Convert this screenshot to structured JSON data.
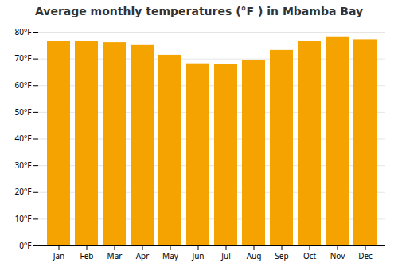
{
  "chart_data": {
    "type": "bar",
    "title": "Average monthly temperatures (°F ) in Mbamba Bay",
    "categories": [
      "Jan",
      "Feb",
      "Mar",
      "Apr",
      "May",
      "Jun",
      "Jul",
      "Aug",
      "Sep",
      "Oct",
      "Nov",
      "Dec"
    ],
    "values": [
      76.5,
      76.5,
      76.1,
      75.0,
      71.4,
      68.2,
      67.8,
      69.3,
      73.2,
      76.6,
      78.3,
      77.2
    ],
    "color": "#F5A300",
    "ylim": [
      0,
      80
    ],
    "yticks": [
      {
        "value": 0,
        "label": "0°F"
      },
      {
        "value": 10,
        "label": "10°F"
      },
      {
        "value": 20,
        "label": "20°F"
      },
      {
        "value": 30,
        "label": "30°F"
      },
      {
        "value": 40,
        "label": "40°F"
      },
      {
        "value": 50,
        "label": "50°F"
      },
      {
        "value": 60,
        "label": "60°F"
      },
      {
        "value": 70,
        "label": "70°F"
      },
      {
        "value": 80,
        "label": "80°F"
      }
    ],
    "grid": true
  }
}
